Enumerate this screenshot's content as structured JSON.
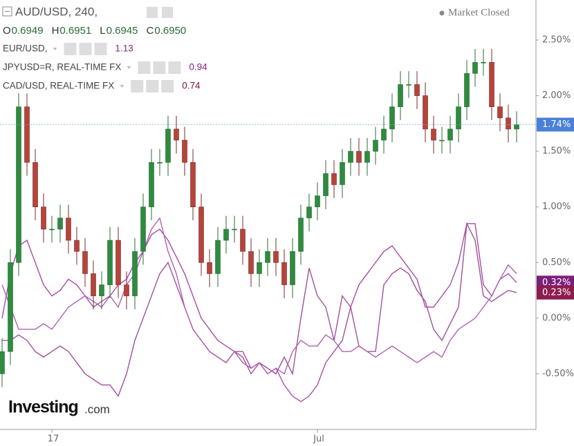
{
  "chart_data": {
    "type": "candlestick",
    "title": "AUD/USD, 240,",
    "status": "Market Closed",
    "ohlc": [
      {
        "label": "O",
        "value": 0.6949
      },
      {
        "label": "H",
        "value": 0.6951
      },
      {
        "label": "L",
        "value": 0.6945
      },
      {
        "label": "C",
        "value": 0.695
      }
    ],
    "ohlc_value_labels": [
      "0.6949",
      "0.6951",
      "0.6945",
      "0.6950"
    ],
    "logo": {
      "brand": "Investing",
      "suffix": ".com"
    },
    "categories": [
      null,
      null,
      null,
      null,
      null,
      null,
      "17",
      null,
      null,
      null,
      null,
      null,
      null,
      null,
      null,
      null,
      null,
      null,
      null,
      null,
      null,
      null,
      null,
      null,
      null,
      null,
      null,
      null,
      null,
      null,
      null,
      null,
      null,
      null,
      null,
      null,
      null,
      null,
      "Jul",
      null,
      null,
      null,
      null,
      null,
      null,
      null,
      null,
      null,
      null,
      null,
      null,
      null,
      null,
      null,
      null,
      null,
      null,
      null,
      null,
      null,
      null,
      null,
      null
    ],
    "ylim": [
      -1.0,
      2.86
    ],
    "yticks": [
      {
        "value": -0.5,
        "label": "-0.50%"
      },
      {
        "value": 0,
        "label": "0.00%"
      },
      {
        "value": 0.5,
        "label": "0.50%"
      },
      {
        "value": 1,
        "label": "1.00%"
      },
      {
        "value": 1.5,
        "label": "1.50%"
      },
      {
        "value": 2,
        "label": "2.00%"
      },
      {
        "value": 2.5,
        "label": "2.50%"
      }
    ],
    "up_color": "#2e8b3f",
    "down_color": "#b4453c",
    "candles": {
      "last_label": "1.74%",
      "last_color": "#4a80d8",
      "open": [
        -0.5,
        -0.3,
        0.5,
        1.9,
        1.4,
        1.0,
        0.8,
        0.8,
        0.9,
        0.7,
        0.6,
        0.4,
        0.2,
        0.3,
        0.7,
        0.3,
        0.2,
        0.6,
        1.0,
        1.4,
        1.4,
        1.7,
        1.6,
        1.4,
        1.0,
        0.5,
        0.4,
        0.7,
        0.8,
        0.8,
        0.6,
        0.4,
        0.5,
        0.6,
        0.5,
        0.3,
        0.6,
        0.9,
        1.0,
        1.1,
        1.3,
        1.2,
        1.4,
        1.5,
        1.4,
        1.5,
        1.6,
        1.7,
        1.9,
        2.1,
        2.1,
        2.0,
        1.7,
        1.6,
        1.6,
        1.7,
        1.9,
        2.2,
        2.3,
        2.3,
        1.9,
        1.8,
        1.7
      ],
      "high": [
        -0.18,
        0.62,
        2.02,
        2.02,
        1.52,
        1.12,
        0.92,
        1.02,
        1.02,
        0.82,
        0.72,
        0.52,
        0.42,
        0.82,
        0.82,
        0.42,
        0.72,
        1.12,
        1.52,
        1.52,
        1.82,
        1.82,
        1.72,
        1.52,
        1.12,
        0.62,
        0.82,
        0.92,
        0.92,
        0.92,
        0.72,
        0.62,
        0.72,
        0.72,
        0.62,
        0.72,
        1.02,
        1.12,
        1.22,
        1.42,
        1.42,
        1.52,
        1.62,
        1.62,
        1.62,
        1.72,
        1.82,
        2.02,
        2.22,
        2.22,
        2.22,
        2.12,
        1.82,
        1.72,
        1.82,
        2.02,
        2.32,
        2.42,
        2.42,
        2.42,
        2.02,
        1.92,
        1.86
      ],
      "low": [
        -0.62,
        -0.42,
        0.38,
        1.28,
        0.88,
        0.68,
        0.68,
        0.68,
        0.58,
        0.48,
        0.28,
        0.08,
        0.08,
        0.18,
        0.18,
        0.08,
        0.08,
        0.48,
        0.88,
        1.28,
        1.28,
        1.48,
        1.28,
        0.88,
        0.38,
        0.28,
        0.28,
        0.58,
        0.68,
        0.48,
        0.28,
        0.28,
        0.38,
        0.38,
        0.18,
        0.18,
        0.48,
        0.78,
        0.88,
        0.98,
        1.08,
        1.08,
        1.28,
        1.28,
        1.28,
        1.38,
        1.48,
        1.58,
        1.78,
        1.98,
        1.88,
        1.58,
        1.48,
        1.48,
        1.48,
        1.58,
        1.78,
        2.08,
        2.18,
        1.78,
        1.68,
        1.58,
        1.58
      ],
      "close": [
        -0.3,
        0.5,
        1.9,
        1.4,
        1.0,
        0.8,
        0.8,
        0.9,
        0.7,
        0.6,
        0.4,
        0.2,
        0.3,
        0.7,
        0.3,
        0.2,
        0.6,
        1.0,
        1.4,
        1.4,
        1.7,
        1.6,
        1.4,
        1.0,
        0.5,
        0.4,
        0.7,
        0.8,
        0.8,
        0.6,
        0.4,
        0.5,
        0.6,
        0.5,
        0.3,
        0.6,
        0.9,
        1.0,
        1.1,
        1.3,
        1.2,
        1.4,
        1.5,
        1.4,
        1.5,
        1.6,
        1.7,
        1.9,
        2.1,
        2.1,
        2.0,
        1.7,
        1.6,
        1.6,
        1.7,
        1.9,
        2.2,
        2.3,
        2.3,
        1.9,
        1.8,
        1.7,
        1.74
      ]
    },
    "series": [
      {
        "name": "EUR/USD,",
        "legend_value": 1.13,
        "legend_color": "#7b2a7b",
        "color": "#a64ca6",
        "last_label": "0.32%",
        "label_color": "#7b1f7b",
        "values": [
          0.0,
          0.4,
          0.65,
          0.7,
          0.5,
          0.3,
          0.2,
          0.25,
          0.35,
          0.3,
          0.2,
          0.1,
          0.15,
          0.2,
          0.3,
          0.35,
          0.5,
          0.6,
          0.75,
          0.8,
          0.7,
          0.55,
          0.4,
          0.2,
          0.0,
          -0.1,
          -0.2,
          -0.25,
          -0.3,
          -0.3,
          -0.45,
          -0.4,
          -0.5,
          -0.45,
          -0.6,
          -0.7,
          -0.75,
          -0.7,
          -0.6,
          -0.4,
          -0.3,
          -0.2,
          0.1,
          0.3,
          0.4,
          0.5,
          0.6,
          0.65,
          0.55,
          0.45,
          0.35,
          0.1,
          0.1,
          0.2,
          0.3,
          0.5,
          0.85,
          0.85,
          0.3,
          0.2,
          0.35,
          0.4,
          0.32
        ]
      },
      {
        "name": "JPYUSD=R, REAL-TIME FX",
        "legend_value": 0.94,
        "legend_color": "#8b1e8b",
        "color": "#a24e9c",
        "last_label": "0.23%",
        "label_color": "#8b1d4f",
        "values": [
          -0.2,
          -0.2,
          -0.15,
          -0.2,
          -0.3,
          -0.35,
          -0.3,
          -0.25,
          -0.3,
          -0.4,
          -0.5,
          -0.55,
          -0.6,
          -0.6,
          -0.7,
          -0.5,
          -0.2,
          0.0,
          0.2,
          0.4,
          0.5,
          0.3,
          0.1,
          -0.1,
          -0.2,
          -0.3,
          -0.35,
          -0.4,
          -0.3,
          -0.35,
          -0.5,
          -0.4,
          -0.45,
          -0.5,
          -0.35,
          -0.5,
          0.0,
          0.45,
          0.2,
          0.1,
          -0.2,
          0.2,
          0.1,
          -0.25,
          -0.3,
          -0.3,
          0.3,
          0.4,
          0.45,
          0.4,
          0.25,
          0.15,
          -0.1,
          -0.2,
          -0.05,
          0.1,
          0.85,
          0.7,
          0.2,
          0.15,
          0.2,
          0.25,
          0.23
        ]
      },
      {
        "name": "CAD/USD, REAL-TIME FX",
        "legend_value": 0.74,
        "legend_color": "#7a1048",
        "color": "#b060b0",
        "values": [
          0.3,
          0.1,
          -0.1,
          -0.1,
          -0.1,
          -0.05,
          -0.1,
          0.0,
          0.1,
          0.15,
          0.2,
          0.15,
          0.1,
          0.2,
          0.1,
          0.3,
          0.4,
          0.6,
          0.8,
          0.9,
          0.6,
          0.4,
          0.1,
          -0.1,
          -0.2,
          -0.3,
          -0.35,
          -0.4,
          -0.3,
          -0.4,
          -0.45,
          -0.4,
          -0.5,
          -0.45,
          -0.5,
          -0.3,
          -0.2,
          -0.25,
          -0.25,
          -0.15,
          -0.2,
          -0.3,
          -0.3,
          -0.25,
          -0.3,
          -0.35,
          -0.3,
          -0.25,
          -0.3,
          -0.35,
          -0.4,
          -0.35,
          -0.3,
          -0.35,
          -0.2,
          -0.1,
          -0.05,
          0.0,
          0.1,
          0.2,
          0.35,
          0.48,
          0.4
        ]
      }
    ]
  }
}
